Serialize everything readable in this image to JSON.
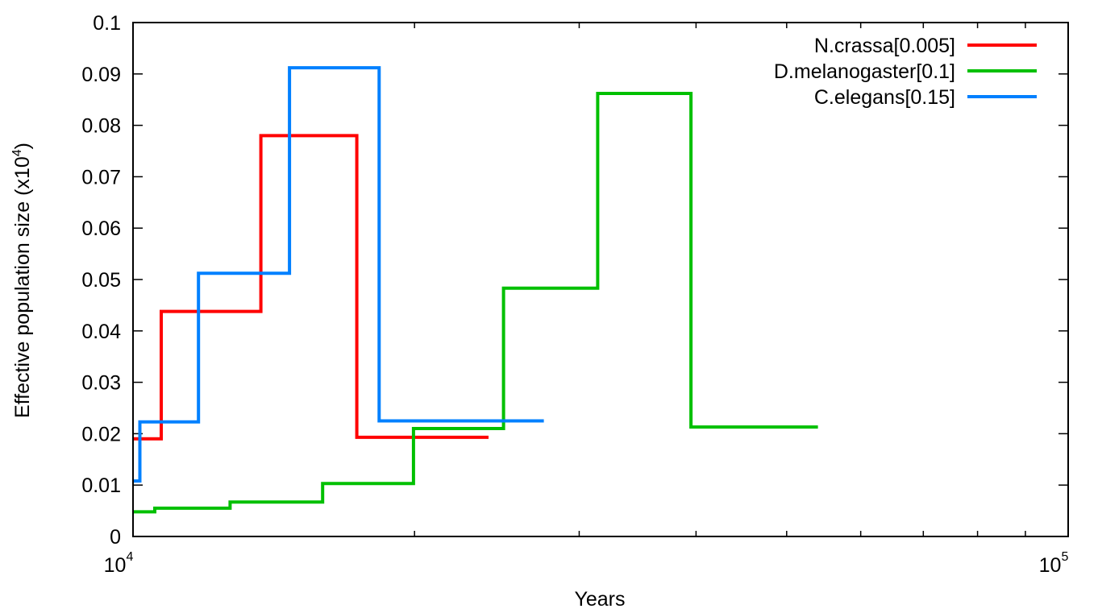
{
  "chart_data": {
    "type": "line",
    "step": true,
    "xscale": "log",
    "xlim": [
      10000,
      100000
    ],
    "ylim": [
      0,
      0.1
    ],
    "xlabel": "Years",
    "ylabel": "Effective population size (x10",
    "ylabel_sup": "4",
    "ylabel_suffix": ")",
    "x_ticks": [
      {
        "base": "10",
        "exp": "4",
        "value": 10000
      },
      {
        "base": "10",
        "exp": "5",
        "value": 100000
      }
    ],
    "y_ticks": [
      "0",
      "0.01",
      "0.02",
      "0.03",
      "0.04",
      "0.05",
      "0.06",
      "0.07",
      "0.08",
      "0.09",
      "0.1"
    ],
    "grid": false,
    "legend_position": "top-right",
    "series": [
      {
        "name": "N.crassa[0.005]",
        "color": "#ff0000",
        "x": [
          10000,
          10720,
          10720,
          13700,
          13700,
          17350,
          17350,
          24000
        ],
        "y": [
          0.019,
          0.019,
          0.0438,
          0.0438,
          0.078,
          0.078,
          0.0193,
          0.0193
        ]
      },
      {
        "name": "D.melanogaster[0.1]",
        "color": "#00c000",
        "x": [
          10000,
          10550,
          10550,
          12700,
          12700,
          15950,
          15950,
          19950,
          19950,
          24900,
          24900,
          31400,
          31400,
          39500,
          39500,
          54000
        ],
        "y": [
          0.0048,
          0.0048,
          0.0055,
          0.0055,
          0.0067,
          0.0067,
          0.0103,
          0.0103,
          0.021,
          0.021,
          0.0483,
          0.0483,
          0.0862,
          0.0862,
          0.0213,
          0.0213
        ]
      },
      {
        "name": "C.elegans[0.15]",
        "color": "#0080ff",
        "x": [
          10000,
          10170,
          10170,
          11750,
          11750,
          14700,
          14700,
          18330,
          18330,
          27500
        ],
        "y": [
          0.0108,
          0.0108,
          0.0223,
          0.0223,
          0.0512,
          0.0512,
          0.0912,
          0.0912,
          0.0225,
          0.0225
        ]
      }
    ]
  }
}
